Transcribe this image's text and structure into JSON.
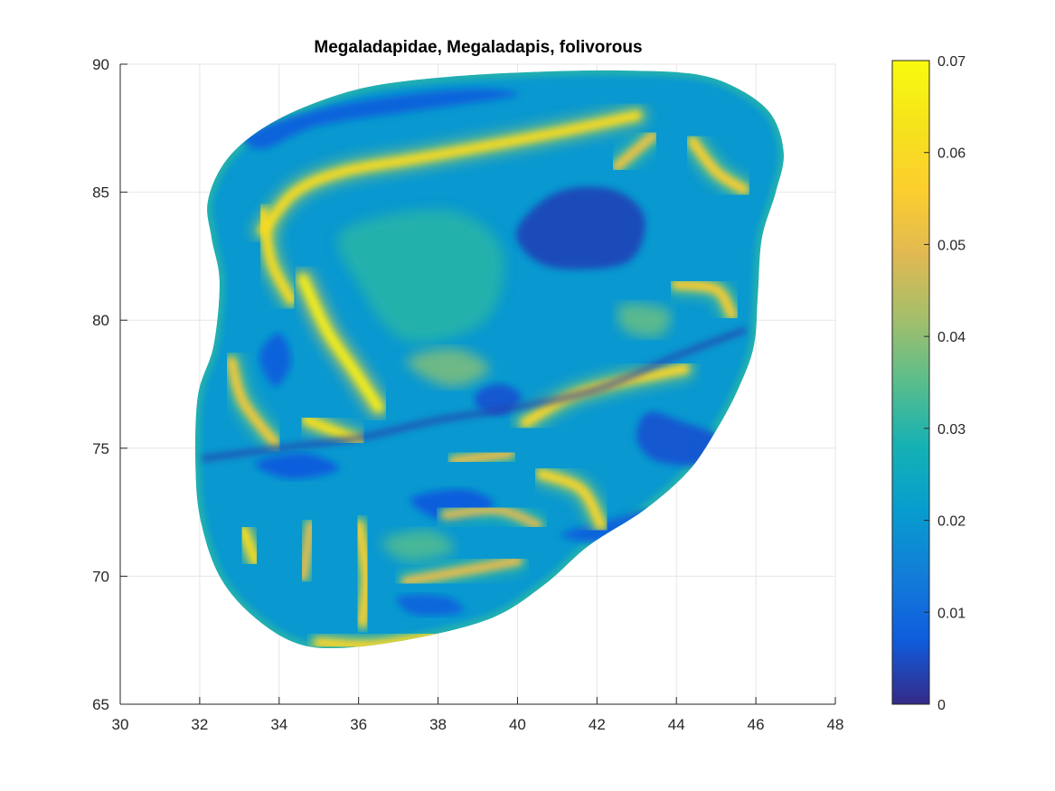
{
  "chart_data": {
    "type": "heatmap",
    "title": "Megaladapidae, Megaladapis, folivorous",
    "xlabel": "",
    "ylabel": "",
    "xlim": [
      30,
      48
    ],
    "ylim": [
      65,
      90
    ],
    "x_ticks": [
      "30",
      "32",
      "34",
      "36",
      "38",
      "40",
      "42",
      "44",
      "46",
      "48"
    ],
    "y_ticks": [
      "65",
      "70",
      "75",
      "80",
      "85",
      "90"
    ],
    "grid": true,
    "colormap": "parula",
    "colorbar": {
      "range": [
        0,
        0.07
      ],
      "ticks": [
        "0",
        "0.01",
        "0.02",
        "0.03",
        "0.04",
        "0.05",
        "0.06",
        "0.07"
      ],
      "location": "right"
    },
    "outline": [
      [
        32.2,
        84.6
      ],
      [
        32.6,
        86.1
      ],
      [
        33.4,
        87.3
      ],
      [
        34.6,
        88.3
      ],
      [
        36.2,
        89.1
      ],
      [
        38.2,
        89.5
      ],
      [
        40.5,
        89.7
      ],
      [
        42.7,
        89.75
      ],
      [
        44.5,
        89.6
      ],
      [
        45.6,
        89.0
      ],
      [
        46.4,
        88.0
      ],
      [
        46.7,
        86.5
      ],
      [
        46.5,
        85.0
      ],
      [
        46.15,
        83.2
      ],
      [
        46.05,
        81.0
      ],
      [
        45.95,
        79.0
      ],
      [
        45.55,
        77.3
      ],
      [
        45.0,
        75.7
      ],
      [
        44.3,
        74.1
      ],
      [
        43.2,
        72.6
      ],
      [
        41.8,
        71.2
      ],
      [
        40.7,
        69.7
      ],
      [
        39.4,
        68.4
      ],
      [
        37.5,
        67.6
      ],
      [
        35.6,
        67.2
      ],
      [
        34.4,
        67.4
      ],
      [
        33.3,
        68.5
      ],
      [
        32.5,
        70.0
      ],
      [
        32.05,
        72.0
      ],
      [
        31.9,
        74.0
      ],
      [
        31.95,
        77.0
      ],
      [
        32.35,
        79.0
      ],
      [
        32.5,
        81.5
      ],
      [
        32.3,
        83.2
      ]
    ],
    "hot_ridges": [
      {
        "points": [
          [
            33.6,
            83.5
          ],
          [
            34.4,
            85.0
          ],
          [
            35.6,
            85.8
          ],
          [
            37.4,
            86.3
          ],
          [
            39.2,
            86.8
          ],
          [
            41.2,
            87.4
          ],
          [
            43.0,
            88.0
          ]
        ],
        "level": 0.06
      },
      {
        "points": [
          [
            34.6,
            81.6
          ],
          [
            35.2,
            79.6
          ],
          [
            35.9,
            78.0
          ],
          [
            36.5,
            76.6
          ]
        ],
        "level": 0.066
      },
      {
        "points": [
          [
            33.6,
            84.2
          ],
          [
            33.8,
            82.3
          ],
          [
            34.3,
            80.8
          ]
        ],
        "level": 0.06
      },
      {
        "points": [
          [
            34.7,
            76.1
          ],
          [
            35.5,
            75.6
          ],
          [
            36.0,
            75.3
          ]
        ],
        "level": 0.062
      },
      {
        "points": [
          [
            40.2,
            76.0
          ],
          [
            41.3,
            77.0
          ],
          [
            42.6,
            77.6
          ],
          [
            44.2,
            78.1
          ]
        ],
        "level": 0.058
      },
      {
        "points": [
          [
            40.6,
            74.0
          ],
          [
            41.6,
            73.4
          ],
          [
            42.1,
            72.0
          ]
        ],
        "level": 0.058
      },
      {
        "points": [
          [
            36.0,
            72.0
          ],
          [
            36.2,
            70.0
          ],
          [
            36.1,
            68.2
          ]
        ],
        "level": 0.056
      },
      {
        "points": [
          [
            34.8,
            72.0
          ],
          [
            34.6,
            70.0
          ]
        ],
        "level": 0.05
      },
      {
        "points": [
          [
            44.4,
            87.0
          ],
          [
            45.0,
            85.8
          ],
          [
            45.7,
            85.1
          ]
        ],
        "level": 0.056
      },
      {
        "points": [
          [
            42.5,
            86.0
          ],
          [
            43.4,
            87.2
          ]
        ],
        "level": 0.052
      },
      {
        "points": [
          [
            44.0,
            81.4
          ],
          [
            45.0,
            81.2
          ],
          [
            45.4,
            80.2
          ]
        ],
        "level": 0.055
      },
      {
        "points": [
          [
            33.1,
            71.8
          ],
          [
            33.4,
            70.6
          ]
        ],
        "level": 0.06
      },
      {
        "points": [
          [
            35.0,
            67.4
          ],
          [
            36.4,
            67.3
          ],
          [
            38.0,
            67.7
          ]
        ],
        "level": 0.058
      },
      {
        "points": [
          [
            37.2,
            69.8
          ],
          [
            38.6,
            70.2
          ],
          [
            40.0,
            70.6
          ]
        ],
        "level": 0.05
      },
      {
        "points": [
          [
            38.4,
            74.5
          ],
          [
            39.8,
            74.8
          ]
        ],
        "level": 0.05
      },
      {
        "points": [
          [
            32.8,
            78.4
          ],
          [
            33.1,
            76.8
          ],
          [
            33.9,
            75.2
          ]
        ],
        "level": 0.054
      },
      {
        "points": [
          [
            38.2,
            72.4
          ],
          [
            39.5,
            72.6
          ],
          [
            40.5,
            72.0
          ]
        ],
        "level": 0.048
      }
    ],
    "cold_regions": [
      {
        "points": [
          [
            40.0,
            83.6
          ],
          [
            41.0,
            85.0
          ],
          [
            42.4,
            85.1
          ],
          [
            43.2,
            84.0
          ],
          [
            42.8,
            82.3
          ],
          [
            41.2,
            82.0
          ],
          [
            40.3,
            82.5
          ]
        ],
        "level": 0.004
      },
      {
        "points": [
          [
            43.3,
            76.4
          ],
          [
            44.2,
            76.0
          ],
          [
            45.1,
            75.4
          ],
          [
            44.8,
            74.4
          ],
          [
            43.5,
            74.5
          ],
          [
            43.0,
            75.4
          ]
        ],
        "level": 0.006
      },
      {
        "points": [
          [
            33.2,
            87.3
          ],
          [
            35.5,
            88.4
          ],
          [
            38.5,
            89.0
          ],
          [
            40.0,
            88.8
          ],
          [
            37.5,
            88.2
          ],
          [
            35.0,
            87.6
          ],
          [
            33.6,
            86.7
          ]
        ],
        "level": 0.008
      },
      {
        "points": [
          [
            39.0,
            77.2
          ],
          [
            39.6,
            77.5
          ],
          [
            40.1,
            77.0
          ],
          [
            39.6,
            76.3
          ],
          [
            39.0,
            76.6
          ]
        ],
        "level": 0.006
      },
      {
        "points": [
          [
            34.0,
            79.5
          ],
          [
            34.3,
            78.4
          ],
          [
            33.9,
            77.4
          ],
          [
            33.5,
            78.6
          ]
        ],
        "level": 0.008
      },
      {
        "points": [
          [
            37.3,
            73.0
          ],
          [
            38.6,
            73.4
          ],
          [
            39.4,
            72.8
          ],
          [
            38.3,
            72.1
          ]
        ],
        "level": 0.007
      },
      {
        "points": [
          [
            41.1,
            71.6
          ],
          [
            42.3,
            72.2
          ],
          [
            43.4,
            72.6
          ],
          [
            43.6,
            71.9
          ],
          [
            42.4,
            71.3
          ]
        ],
        "level": 0.008
      },
      {
        "points": [
          [
            33.4,
            74.4
          ],
          [
            34.6,
            74.8
          ],
          [
            35.5,
            74.2
          ],
          [
            34.3,
            73.8
          ]
        ],
        "level": 0.007
      },
      {
        "points": [
          [
            37.0,
            69.2
          ],
          [
            38.2,
            69.2
          ],
          [
            38.6,
            68.6
          ],
          [
            37.4,
            68.5
          ]
        ],
        "level": 0.009
      }
    ],
    "mid_regions": [
      {
        "points": [
          [
            35.6,
            83.5
          ],
          [
            38.2,
            84.3
          ],
          [
            39.6,
            82.8
          ],
          [
            39.2,
            80.0
          ],
          [
            37.2,
            79.2
          ],
          [
            36.0,
            81.4
          ]
        ],
        "level": 0.03
      },
      {
        "points": [
          [
            37.2,
            78.4
          ],
          [
            38.4,
            78.9
          ],
          [
            39.3,
            78.1
          ],
          [
            38.3,
            77.4
          ]
        ],
        "level": 0.038
      },
      {
        "points": [
          [
            42.6,
            80.6
          ],
          [
            43.8,
            80.4
          ],
          [
            43.6,
            79.4
          ],
          [
            42.7,
            79.6
          ]
        ],
        "level": 0.036
      },
      {
        "points": [
          [
            36.6,
            71.4
          ],
          [
            37.8,
            71.8
          ],
          [
            38.4,
            71.0
          ],
          [
            37.2,
            70.6
          ]
        ],
        "level": 0.034
      }
    ],
    "separator_curve": [
      [
        32.1,
        74.6
      ],
      [
        34.0,
        75.0
      ],
      [
        36.0,
        75.4
      ],
      [
        38.0,
        76.1
      ],
      [
        40.0,
        76.6
      ],
      [
        42.0,
        77.3
      ],
      [
        44.0,
        78.6
      ],
      [
        45.7,
        79.6
      ]
    ]
  }
}
